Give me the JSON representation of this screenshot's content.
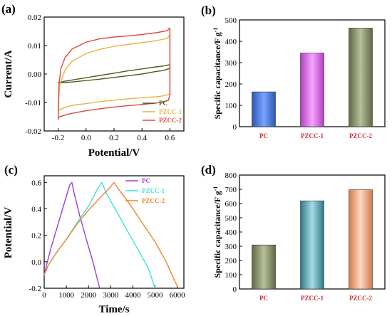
{
  "chart_data": [
    {
      "panel": "(a)",
      "type": "line",
      "xlabel": "Potential/V",
      "ylabel": "Current/A",
      "xlim": [
        -0.3,
        0.7
      ],
      "ylim": [
        -0.02,
        0.02
      ],
      "xticks": [
        "-0.2",
        "0.0",
        "0.2",
        "0.4",
        "0.6"
      ],
      "xtick_values": [
        -0.2,
        0.0,
        0.2,
        0.4,
        0.6
      ],
      "yticks": [
        "-0.02",
        "-0.01",
        "0.00",
        "0.01",
        "0.02"
      ],
      "ytick_values": [
        -0.02,
        -0.01,
        0.0,
        0.01,
        0.02
      ],
      "legend_position": "bottom-right",
      "series": [
        {
          "name": "PC",
          "color": "#4b5e1f",
          "x": [
            -0.2,
            -0.15,
            -0.1,
            0.0,
            0.1,
            0.2,
            0.3,
            0.4,
            0.5,
            0.55,
            0.6,
            0.6,
            0.55,
            0.5,
            0.4,
            0.3,
            0.2,
            0.1,
            0.0,
            -0.1,
            -0.15,
            -0.2
          ],
          "y": [
            -0.003,
            -0.0025,
            -0.0021,
            -0.0013,
            -0.0005,
            0.0003,
            0.0011,
            0.0018,
            0.0025,
            0.0028,
            0.0033,
            0.002,
            0.0012,
            0.0009,
            0.0,
            -0.0006,
            -0.0012,
            -0.0018,
            -0.0023,
            -0.0028,
            -0.003,
            -0.003
          ]
        },
        {
          "name": "PZCC-1",
          "color": "#e9b440",
          "x": [
            -0.2,
            -0.19,
            -0.15,
            -0.1,
            0.0,
            0.1,
            0.2,
            0.3,
            0.4,
            0.5,
            0.58,
            0.6,
            0.6,
            0.59,
            0.55,
            0.5,
            0.4,
            0.3,
            0.2,
            0.1,
            0.0,
            -0.1,
            -0.15,
            -0.2
          ],
          "y": [
            -0.014,
            -0.004,
            0.0015,
            0.0045,
            0.0072,
            0.0087,
            0.0097,
            0.0104,
            0.011,
            0.0117,
            0.0125,
            0.0138,
            -0.0068,
            -0.0072,
            -0.0077,
            -0.008,
            -0.0083,
            -0.0087,
            -0.0092,
            -0.0097,
            -0.0104,
            -0.011,
            -0.0117,
            -0.0128
          ]
        },
        {
          "name": "PZCC-2",
          "color": "#e0483a",
          "x": [
            -0.2,
            -0.195,
            -0.18,
            -0.15,
            -0.1,
            0.0,
            0.1,
            0.2,
            0.3,
            0.4,
            0.5,
            0.58,
            0.6,
            0.6,
            0.59,
            0.55,
            0.5,
            0.4,
            0.3,
            0.2,
            0.1,
            0.0,
            -0.1,
            -0.15,
            -0.2
          ],
          "y": [
            -0.016,
            -0.004,
            0.002,
            0.0058,
            0.0088,
            0.0112,
            0.0124,
            0.013,
            0.0134,
            0.0139,
            0.0145,
            0.0152,
            0.0162,
            -0.007,
            -0.0092,
            -0.0098,
            -0.0102,
            -0.0107,
            -0.0111,
            -0.0116,
            -0.0122,
            -0.0129,
            -0.0138,
            -0.0144,
            -0.0152
          ]
        }
      ]
    },
    {
      "panel": "(b)",
      "type": "bar",
      "ylabel": "Specific capacitance/F g",
      "ylabel_sup": "-1",
      "ylim": [
        0,
        500
      ],
      "yticks": [
        "0",
        "100",
        "200",
        "300",
        "400",
        "500"
      ],
      "ytick_values": [
        0,
        100,
        200,
        300,
        400,
        500
      ],
      "categories": [
        "PC",
        "PZCC-1",
        "PZCC-2"
      ],
      "values": [
        163,
        345,
        462
      ],
      "colors": [
        "#3f72d6",
        "#d95fe0",
        "#7e8a5f"
      ]
    },
    {
      "panel": "(c)",
      "type": "line",
      "xlabel": "Time/s",
      "ylabel": "Potential/V",
      "xlim": [
        0,
        6300
      ],
      "ylim": [
        -0.2,
        0.65
      ],
      "xticks": [
        "0",
        "1000",
        "2000",
        "3000",
        "4000",
        "5000",
        "6000"
      ],
      "xtick_values": [
        0,
        1000,
        2000,
        3000,
        4000,
        5000,
        6000
      ],
      "yticks": [
        "-0.2",
        "0.0",
        "0.2",
        "0.4",
        "0.6"
      ],
      "ytick_values": [
        -0.2,
        0.0,
        0.2,
        0.4,
        0.6
      ],
      "legend_position": "top-right",
      "series": [
        {
          "name": "PC",
          "color": "#9b3de3",
          "x": [
            0,
            100,
            300,
            600,
            900,
            1150,
            1250,
            1350,
            1600,
            1900,
            2200,
            2500
          ],
          "y": [
            -0.1,
            -0.03,
            0.1,
            0.27,
            0.44,
            0.58,
            0.6,
            0.52,
            0.35,
            0.17,
            0.0,
            -0.2
          ]
        },
        {
          "name": "PZCC-1",
          "color": "#3fe3d7",
          "x": [
            0,
            200,
            600,
            1000,
            1500,
            2000,
            2400,
            2600,
            2800,
            3200,
            3700,
            4200,
            4700,
            5000
          ],
          "y": [
            -0.1,
            -0.02,
            0.08,
            0.17,
            0.3,
            0.42,
            0.55,
            0.6,
            0.52,
            0.4,
            0.25,
            0.1,
            -0.05,
            -0.2
          ]
        },
        {
          "name": "PZCC-2",
          "color": "#ee8629",
          "x": [
            0,
            200,
            600,
            1000,
            1500,
            2000,
            2500,
            2900,
            3150,
            3350,
            3800,
            4400,
            5000,
            5500,
            5900,
            6050
          ],
          "y": [
            -0.1,
            -0.02,
            0.08,
            0.17,
            0.29,
            0.39,
            0.48,
            0.55,
            0.6,
            0.55,
            0.45,
            0.3,
            0.15,
            0.0,
            -0.15,
            -0.2
          ]
        }
      ]
    },
    {
      "panel": "(d)",
      "type": "bar",
      "ylabel": "Specific capacitance/F g",
      "ylabel_sup": "-1",
      "ylim": [
        0,
        800
      ],
      "yticks": [
        "0",
        "100",
        "200",
        "300",
        "400",
        "500",
        "600",
        "700",
        "800"
      ],
      "ytick_values": [
        0,
        100,
        200,
        300,
        400,
        500,
        600,
        700,
        800
      ],
      "categories": [
        "PC",
        "PZCC-1",
        "PZCC-2"
      ],
      "values": [
        309,
        619,
        697
      ],
      "colors": [
        "#7e8a5f",
        "#4a9eaa",
        "#f0a47a"
      ]
    }
  ]
}
